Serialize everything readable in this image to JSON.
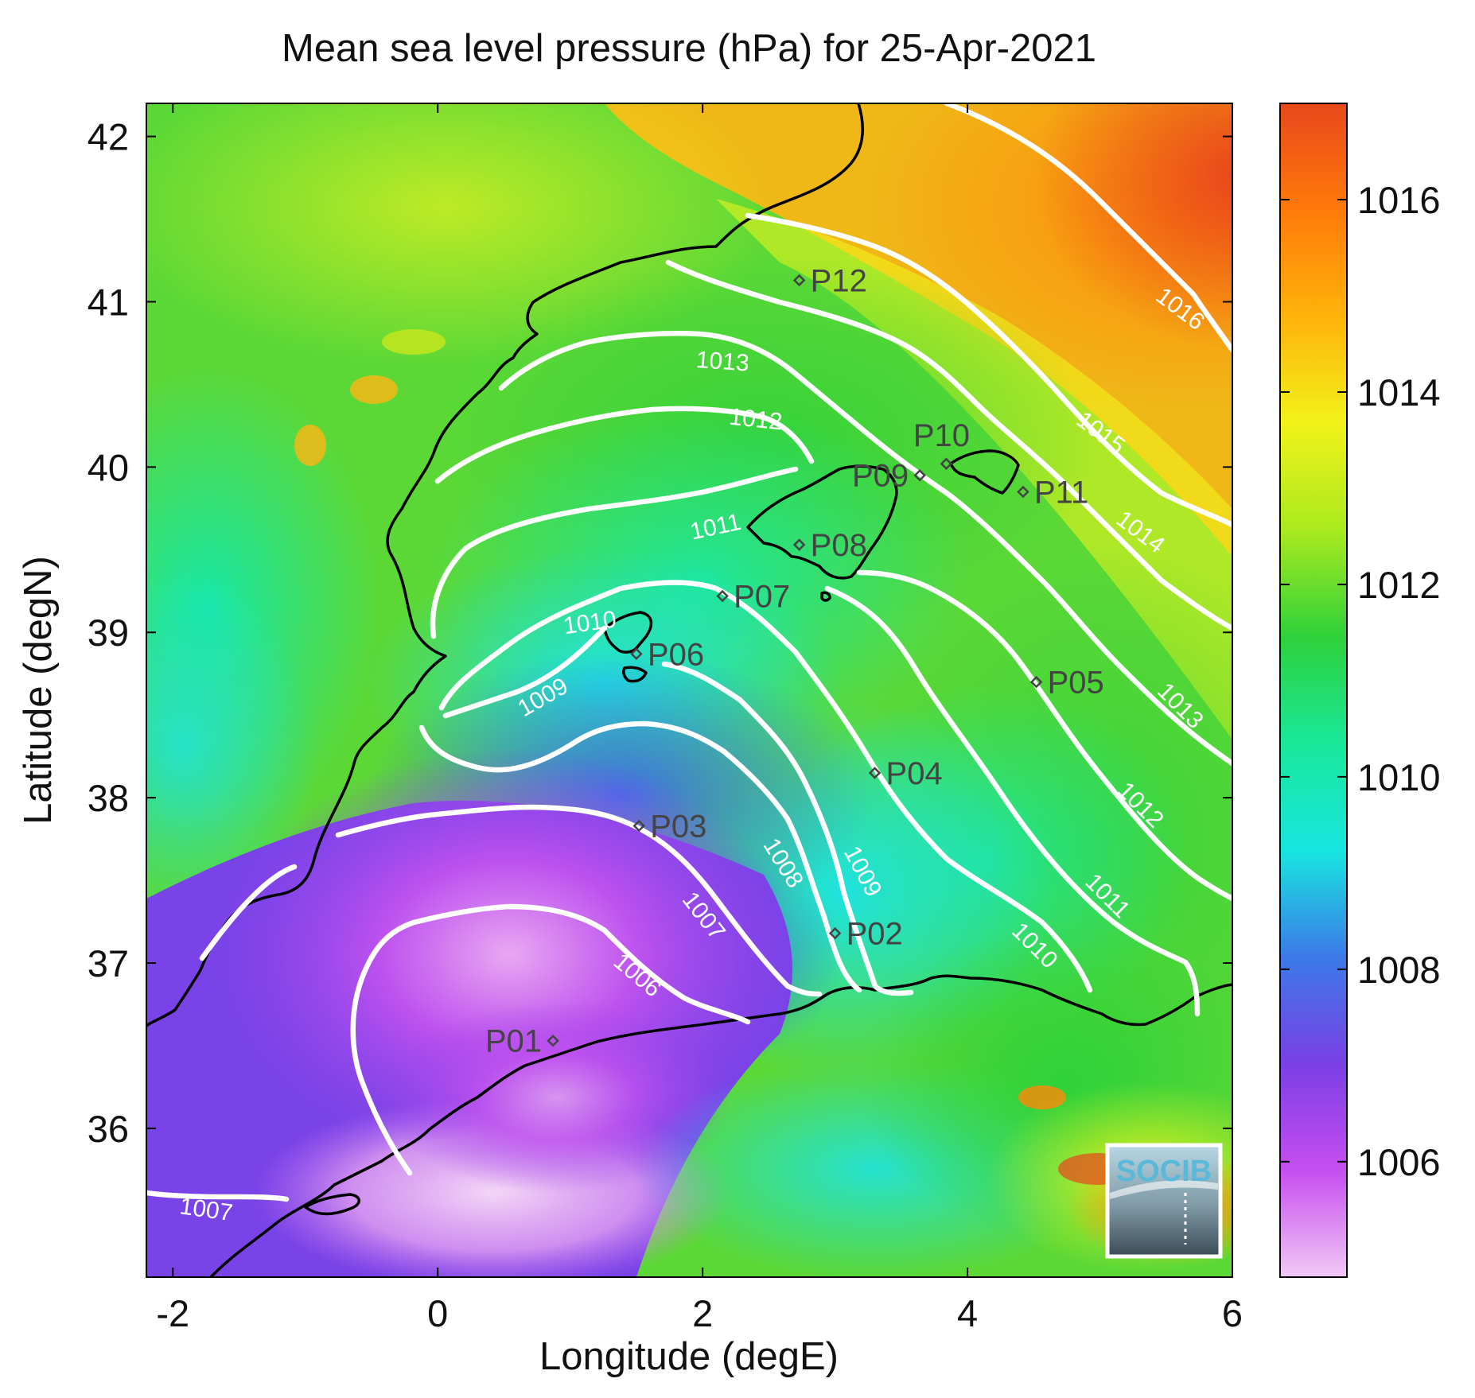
{
  "title": "Mean sea level pressure (hPa) for 25-Apr-2021",
  "xlabel": "Longitude (degE)",
  "ylabel": "Latitude (degN)",
  "x_ticks": [
    "-2",
    "0",
    "2",
    "4",
    "6"
  ],
  "y_ticks": [
    "42",
    "41",
    "40",
    "39",
    "38",
    "37",
    "36"
  ],
  "colorbar": {
    "ticks": [
      "1016",
      "1014",
      "1012",
      "1010",
      "1008",
      "1006"
    ],
    "range": [
      1004.8,
      1017.0
    ],
    "colormap": [
      "#f2c8f5",
      "#c64ef0",
      "#7a3fe6",
      "#3b7ae8",
      "#17e6e0",
      "#19e89a",
      "#2ed13a",
      "#a9ea1e",
      "#f2f21a",
      "#ffb30a",
      "#ff7a0a",
      "#e8481b"
    ]
  },
  "logo": "SOCIB",
  "chart_data": {
    "type": "heatmap",
    "variable": "Mean sea level pressure (hPa)",
    "date": "25-Apr-2021",
    "xlim": [
      -2.2,
      6.0
    ],
    "ylim": [
      35.1,
      42.2
    ],
    "contour_levels": [
      1006,
      1007,
      1008,
      1009,
      1010,
      1011,
      1012,
      1013,
      1014,
      1015,
      1016
    ],
    "contour_labels": [
      {
        "text": "1016",
        "lon": 5.6,
        "lat": 40.95,
        "rot": 37
      },
      {
        "text": "1015",
        "lon": 5.0,
        "lat": 40.2,
        "rot": 37
      },
      {
        "text": "1014",
        "lon": 5.3,
        "lat": 39.6,
        "rot": 37
      },
      {
        "text": "1013",
        "lon": 2.15,
        "lat": 40.63,
        "rot": 4
      },
      {
        "text": "1013",
        "lon": 5.6,
        "lat": 38.55,
        "rot": 45
      },
      {
        "text": "1012",
        "lon": 2.4,
        "lat": 40.28,
        "rot": 6
      },
      {
        "text": "1012",
        "lon": 5.3,
        "lat": 37.95,
        "rot": 45
      },
      {
        "text": "1011",
        "lon": 2.1,
        "lat": 39.63,
        "rot": -12
      },
      {
        "text": "1011",
        "lon": 5.05,
        "lat": 37.4,
        "rot": 45
      },
      {
        "text": "1010",
        "lon": 1.15,
        "lat": 39.05,
        "rot": -8
      },
      {
        "text": "1010",
        "lon": 4.5,
        "lat": 37.1,
        "rot": 45
      },
      {
        "text": "1009",
        "lon": 0.8,
        "lat": 38.6,
        "rot": -30
      },
      {
        "text": "1009",
        "lon": 3.2,
        "lat": 37.55,
        "rot": 62
      },
      {
        "text": "1008",
        "lon": 2.6,
        "lat": 37.6,
        "rot": 58
      },
      {
        "text": "1007",
        "lon": 2.0,
        "lat": 37.28,
        "rot": 52
      },
      {
        "text": "1007",
        "lon": -1.75,
        "lat": 35.5,
        "rot": 8
      },
      {
        "text": "1006",
        "lon": 1.5,
        "lat": 36.92,
        "rot": 40
      }
    ],
    "stations": [
      {
        "name": "P01",
        "lon": 0.87,
        "lat": 36.53,
        "label_side": "left"
      },
      {
        "name": "P02",
        "lon": 3.0,
        "lat": 37.18,
        "label_side": "right"
      },
      {
        "name": "P03",
        "lon": 1.52,
        "lat": 37.83,
        "label_side": "right"
      },
      {
        "name": "P04",
        "lon": 3.3,
        "lat": 38.15,
        "label_side": "right"
      },
      {
        "name": "P05",
        "lon": 4.52,
        "lat": 38.7,
        "label_side": "right"
      },
      {
        "name": "P06",
        "lon": 1.5,
        "lat": 38.87,
        "label_side": "right"
      },
      {
        "name": "P07",
        "lon": 2.15,
        "lat": 39.22,
        "label_side": "right"
      },
      {
        "name": "P08",
        "lon": 2.73,
        "lat": 39.53,
        "label_side": "right"
      },
      {
        "name": "P09",
        "lon": 3.64,
        "lat": 39.95,
        "label_side": "left"
      },
      {
        "name": "P10",
        "lon": 3.84,
        "lat": 40.02,
        "label_side": "above"
      },
      {
        "name": "P11",
        "lon": 4.42,
        "lat": 39.85,
        "label_side": "right"
      },
      {
        "name": "P12",
        "lon": 2.73,
        "lat": 41.13,
        "label_side": "right"
      }
    ]
  }
}
